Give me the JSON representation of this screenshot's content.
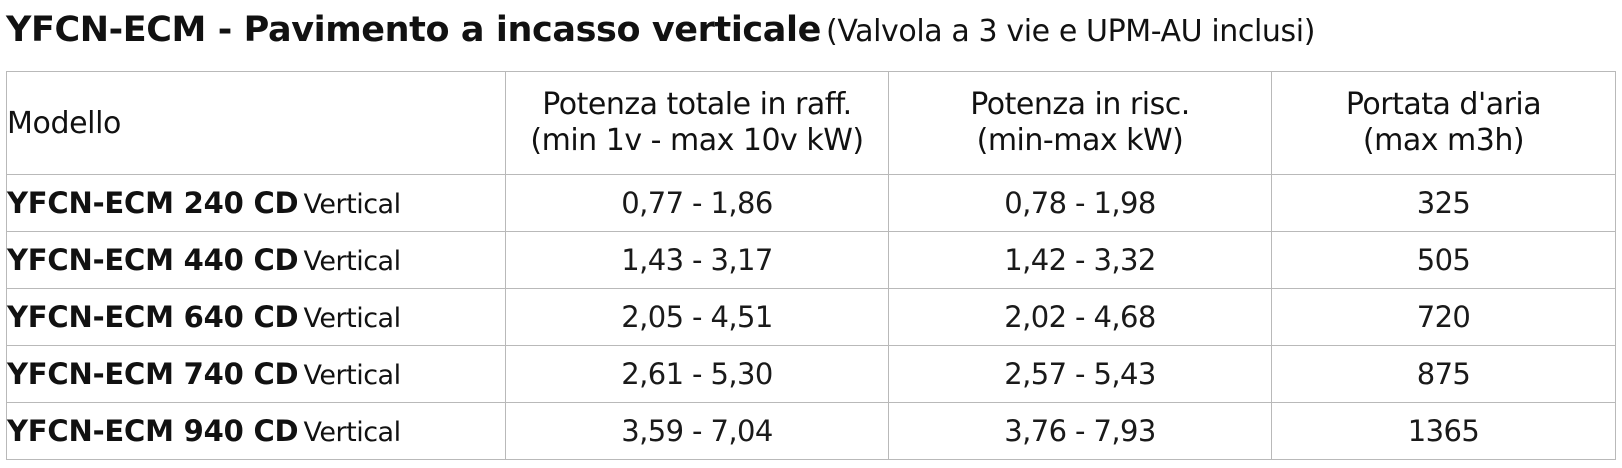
{
  "title": {
    "main": "YFCN-ECM - Pavimento a incasso verticale",
    "sub": "(Valvola a 3 vie e UPM-AU inclusi)"
  },
  "table": {
    "headers": {
      "model": "Modello",
      "cooling": [
        "Potenza totale in raff.",
        "(min 1v - max 10v kW)"
      ],
      "heating": [
        "Potenza in risc.",
        "(min-max kW)"
      ],
      "airflow": [
        "Portata d'aria",
        "(max m3h)"
      ]
    },
    "rows": [
      {
        "model": "YFCN-ECM 240 CD",
        "type": "Vertical",
        "cooling": "0,77 - 1,86",
        "heating": "0,78 - 1,98",
        "airflow": "325"
      },
      {
        "model": "YFCN-ECM 440 CD",
        "type": "Vertical",
        "cooling": "1,43 - 3,17",
        "heating": "1,42 - 3,32",
        "airflow": "505"
      },
      {
        "model": "YFCN-ECM 640 CD",
        "type": "Vertical",
        "cooling": "2,05 - 4,51",
        "heating": "2,02 - 4,68",
        "airflow": "720"
      },
      {
        "model": "YFCN-ECM 740 CD",
        "type": "Vertical",
        "cooling": "2,61 - 5,30",
        "heating": "2,57 - 5,43",
        "airflow": "875"
      },
      {
        "model": "YFCN-ECM 940 CD",
        "type": "Vertical",
        "cooling": "3,59 - 7,04",
        "heating": "3,76 - 7,93",
        "airflow": "1365"
      }
    ]
  }
}
